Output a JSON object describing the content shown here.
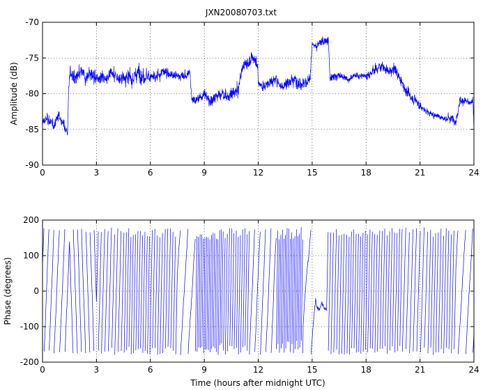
{
  "chart_data": [
    {
      "type": "line",
      "title": "JXN20080703.txt",
      "xlabel": "",
      "ylabel": "Amplitude (dB)",
      "xlim": [
        0,
        24
      ],
      "ylim": [
        -90,
        -70
      ],
      "xticks": [
        0,
        3,
        6,
        9,
        12,
        15,
        18,
        21,
        24
      ],
      "yticks": [
        -90,
        -85,
        -80,
        -75,
        -70
      ],
      "grid": true,
      "series_color": "#0000ff",
      "noise": [
        0.8,
        1.1,
        0.9,
        1.3,
        0.9,
        0.7,
        1.0,
        1.0,
        0.8,
        1.0,
        0.7,
        0.5,
        0.8,
        0.8,
        0.5,
        0.7,
        1.0
      ],
      "series": [
        {
          "x": [
            0,
            0.3,
            0.6,
            0.9,
            1.2,
            1.4,
            1.45,
            1.55,
            1.8,
            2.0,
            2.2,
            2.4,
            2.6,
            2.8,
            3.0,
            3.3,
            3.5,
            3.8,
            4.0,
            4.3,
            4.6,
            5.0,
            5.3,
            5.6,
            6.0,
            6.3,
            6.6,
            7.0,
            7.3,
            7.6,
            8.0,
            8.2,
            8.3,
            8.5,
            8.8,
            9.0,
            9.3,
            9.6,
            10.0,
            10.3,
            10.6,
            10.9,
            11.0,
            11.2,
            11.5,
            11.8,
            11.95,
            12.0,
            12.3,
            12.6,
            13.0,
            13.3,
            13.6,
            14.0,
            14.3,
            14.6,
            14.9,
            15.0,
            15.1,
            15.4,
            15.7,
            15.9,
            16.0,
            16.3,
            16.6,
            17.0,
            17.3,
            17.6,
            18.0,
            18.3,
            18.6,
            18.9,
            19.0,
            19.3,
            19.6,
            19.9,
            20.2,
            20.5,
            20.8,
            21.1,
            21.4,
            21.7,
            22.0,
            22.3,
            22.6,
            22.9,
            23.0,
            23.2,
            23.5,
            23.8,
            23.95,
            24.0
          ],
          "y": [
            -84,
            -83.5,
            -84.5,
            -83,
            -84.5,
            -85.5,
            -79,
            -77,
            -78,
            -77.5,
            -77,
            -78,
            -77,
            -77.5,
            -78,
            -77.5,
            -78,
            -77,
            -77.5,
            -78,
            -77.5,
            -78,
            -77,
            -77.5,
            -77.5,
            -78,
            -77,
            -77,
            -77.5,
            -77.5,
            -77.5,
            -77,
            -80.5,
            -81,
            -80.5,
            -80,
            -81,
            -80.5,
            -80,
            -80.5,
            -80,
            -79.5,
            -77.5,
            -76,
            -75.5,
            -75,
            -75.5,
            -78.5,
            -79,
            -78.5,
            -78,
            -79,
            -78.5,
            -78,
            -78.5,
            -78.5,
            -78,
            -73,
            -73.5,
            -73,
            -72.5,
            -72.5,
            -78,
            -77.5,
            -77.5,
            -78,
            -77.5,
            -77.5,
            -77.5,
            -77,
            -76.5,
            -76,
            -76.5,
            -77,
            -76.5,
            -78,
            -79.5,
            -80.5,
            -81,
            -82,
            -82.5,
            -83,
            -83,
            -83.5,
            -83.5,
            -83.5,
            -84,
            -81,
            -81,
            -81.5,
            -81,
            -84.5
          ]
        }
      ]
    },
    {
      "type": "line",
      "title": "",
      "xlabel": "Time (hours after midnight UTC)",
      "ylabel": "Phase (degrees)",
      "xlim": [
        0,
        24
      ],
      "ylim": [
        -200,
        200
      ],
      "xticks": [
        0,
        3,
        6,
        9,
        12,
        15,
        18,
        21,
        24
      ],
      "yticks": [
        -200,
        -100,
        0,
        100,
        200
      ],
      "grid": true,
      "series_color": "#0000ff",
      "phase_wrap": [
        -180,
        180
      ],
      "segments": [
        {
          "from": 0,
          "to": 1.5,
          "rate": 1250
        },
        {
          "from": 1.5,
          "to": 3,
          "rate": -1550
        },
        {
          "from": 3,
          "to": 4.5,
          "rate": 2000
        },
        {
          "from": 4.5,
          "to": 6,
          "rate": 2800
        },
        {
          "from": 6,
          "to": 7.5,
          "rate": 2500
        },
        {
          "from": 7.5,
          "to": 8.5,
          "rate": 800
        },
        {
          "from": 8.5,
          "to": 10,
          "rate": 4000
        },
        {
          "from": 10,
          "to": 11.5,
          "rate": 3000
        },
        {
          "from": 11.5,
          "to": 13,
          "rate": 1200
        },
        {
          "from": 13,
          "to": 14.5,
          "rate": 4200
        },
        {
          "from": 14.5,
          "to": 15.2,
          "rate": 600
        },
        {
          "from": 15.2,
          "to": 15.8,
          "rate": 80
        },
        {
          "from": 15.8,
          "to": 17,
          "rate": 2400
        },
        {
          "from": 17,
          "to": 18.5,
          "rate": 2800
        },
        {
          "from": 18.5,
          "to": 20,
          "rate": 2600
        },
        {
          "from": 20,
          "to": 21.5,
          "rate": 1800
        },
        {
          "from": 21.5,
          "to": 23,
          "rate": 2500
        },
        {
          "from": 23,
          "to": 24,
          "rate": 900
        }
      ]
    }
  ]
}
